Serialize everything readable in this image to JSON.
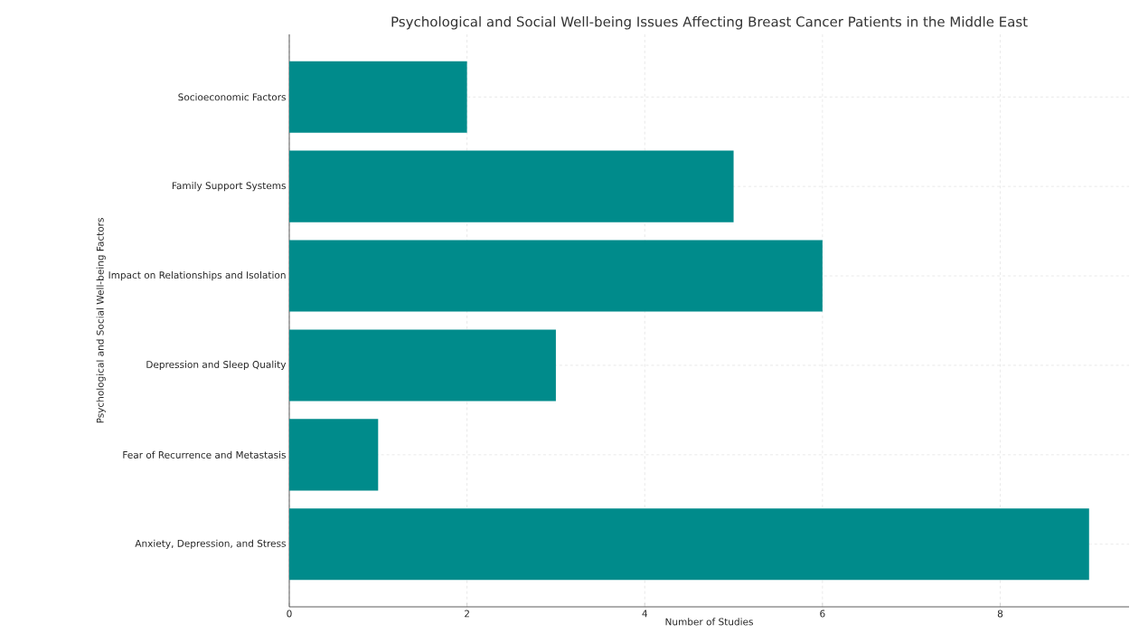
{
  "chart_data": {
    "type": "bar",
    "orientation": "horizontal",
    "title": "Psychological and Social Well-being Issues Affecting Breast Cancer Patients in the Middle East",
    "xlabel": "Number of Studies",
    "ylabel": "Psychological and Social Well-being Factors",
    "categories": [
      "Socioeconomic Factors",
      "Family Support Systems",
      "Impact on Relationships and Isolation",
      "Depression and Sleep Quality",
      "Fear of Recurrence and Metastasis",
      "Anxiety, Depression, and Stress"
    ],
    "values": [
      2,
      5,
      6,
      3,
      1,
      9
    ],
    "color": "#008b8b",
    "xlim": [
      0,
      9.45
    ],
    "xticks": [
      0,
      2,
      4,
      6,
      8
    ],
    "grid": true
  }
}
